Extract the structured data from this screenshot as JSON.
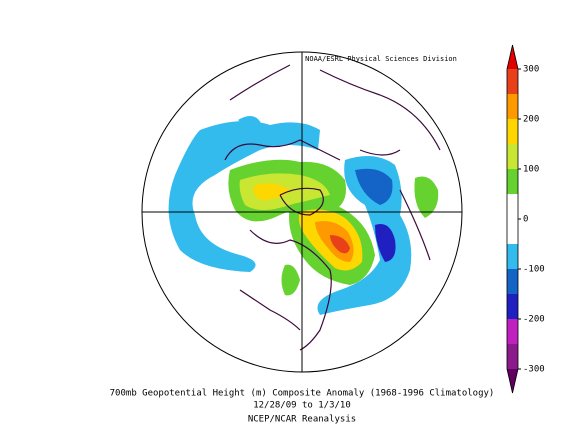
{
  "map": {
    "credit": "NOAA/ESRL Physical Sciences Division",
    "title": "700mb Geopotential Height (m) Composite Anomaly (1968-1996 Climatology)",
    "dates": "12/28/09 to 1/3/10",
    "source": "NCEP/NCAR Reanalysis"
  },
  "colorbar": {
    "range": [
      -300,
      300
    ],
    "ticks": [
      300,
      200,
      100,
      0,
      -100,
      -200,
      -300
    ],
    "colors": [
      "#8b1a8b",
      "#c020c0",
      "#2020c0",
      "#1464c8",
      "#33bbee",
      "#ffffff",
      "#ffffff",
      "#66d22f",
      "#c8e632",
      "#ffd700",
      "#ff9900",
      "#e8411a"
    ],
    "over_color": "#e00000",
    "under_color": "#600060"
  }
}
